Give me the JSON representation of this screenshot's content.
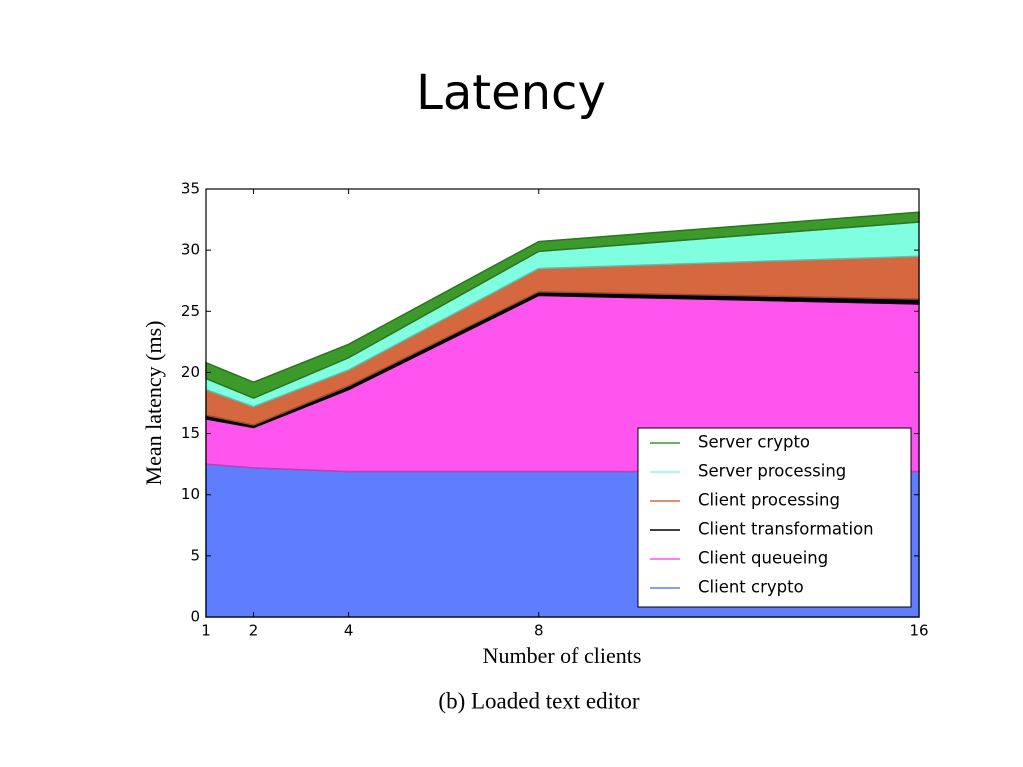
{
  "chart_data": {
    "type": "stacked_area",
    "title": "Latency",
    "subtitle": "(b) Loaded text editor",
    "xlabel": "Number of clients",
    "ylabel": "Mean latency (ms)",
    "x": [
      1,
      2,
      4,
      8,
      16
    ],
    "xlim": [
      1,
      16
    ],
    "xticks": [
      1,
      2,
      4,
      8,
      16
    ],
    "ylim": [
      0,
      35
    ],
    "yticks": [
      0,
      5,
      10,
      15,
      20,
      25,
      30,
      35
    ],
    "legend": "lower right",
    "series": [
      {
        "name": "Server crypto",
        "color": "#3c9a2a",
        "values": [
          1.3,
          1.3,
          1.1,
          0.8,
          0.8
        ]
      },
      {
        "name": "Server processing",
        "color": "#80ffe0",
        "values": [
          0.9,
          0.7,
          1.0,
          1.4,
          2.8
        ]
      },
      {
        "name": "Client processing",
        "color": "#d6683f",
        "values": [
          2.1,
          1.5,
          1.3,
          1.9,
          3.5
        ]
      },
      {
        "name": "Client transformation",
        "color": "#000000",
        "values": [
          0.3,
          0.2,
          0.3,
          0.3,
          0.4
        ]
      },
      {
        "name": "Client queueing",
        "color": "#ff55ee",
        "values": [
          3.7,
          3.3,
          6.7,
          14.4,
          13.7
        ]
      },
      {
        "name": "Client crypto",
        "color": "#5f7dff",
        "values": [
          12.5,
          12.2,
          11.9,
          11.9,
          11.9
        ]
      }
    ]
  }
}
